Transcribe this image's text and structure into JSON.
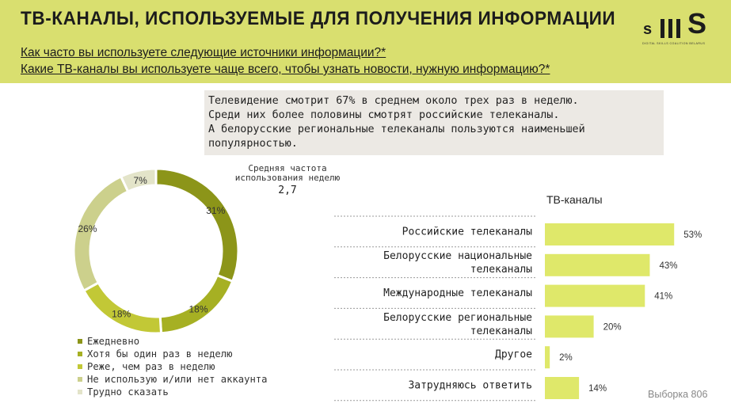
{
  "header": {
    "title": "ТВ-КАНАЛЫ, ИСПОЛЬЗУЕМЫЕ ДЛЯ ПОЛУЧЕНИЯ ИНФОРМАЦИИ",
    "question_1": "Как часто вы используете следующие источники информации?*",
    "question_2": "Какие ТВ-каналы вы используете чаще всего, чтобы узнать новости, нужную информацию?*",
    "background_color": "#d9df6f"
  },
  "logo": {
    "text": "sKIIIS",
    "subtitle": "DIGITAL SKILLS COALITION BELARUS"
  },
  "note": {
    "lines": [
      "Телевидение смотрит 67% в среднем около трех раз в неделю.",
      "Среди них более половины смотрят российские телеканалы.",
      "А белорусские региональные телеканалы пользуются наименьшей",
      "популярностью."
    ]
  },
  "frequency": {
    "label_line1": "Средняя частота",
    "label_line2": "использования неделю",
    "value": "2,7"
  },
  "tv_section_title": "ТВ-каналы",
  "sample": "Выборка 806",
  "chart_data": [
    {
      "type": "pie",
      "donut": true,
      "labels": [
        "Ежедневно",
        "Хотя бы один раз в неделю",
        "Реже, чем раз в неделю",
        "Не использую и/или нет аккаунта",
        "Трудно сказать"
      ],
      "values": [
        31,
        18,
        18,
        26,
        7
      ],
      "value_labels": [
        "31%",
        "18%",
        "18%",
        "26%",
        "7%"
      ],
      "colors": [
        "#8c9519",
        "#a6b023",
        "#c2c836",
        "#ccd08c",
        "#e3e4c9"
      ],
      "legend_position": "bottom-left"
    },
    {
      "type": "bar",
      "orientation": "horizontal",
      "categories": [
        "Российские телеканалы",
        "Белорусские национальные телеканалы",
        "Международные телеканалы",
        "Белорусские региональные телеканалы",
        "Другое",
        "Затрудняюсь ответить"
      ],
      "values": [
        53,
        43,
        41,
        20,
        2,
        14
      ],
      "value_labels": [
        "53%",
        "43%",
        "41%",
        "20%",
        "2%",
        "14%"
      ],
      "color": "#dfe86a"
    }
  ]
}
